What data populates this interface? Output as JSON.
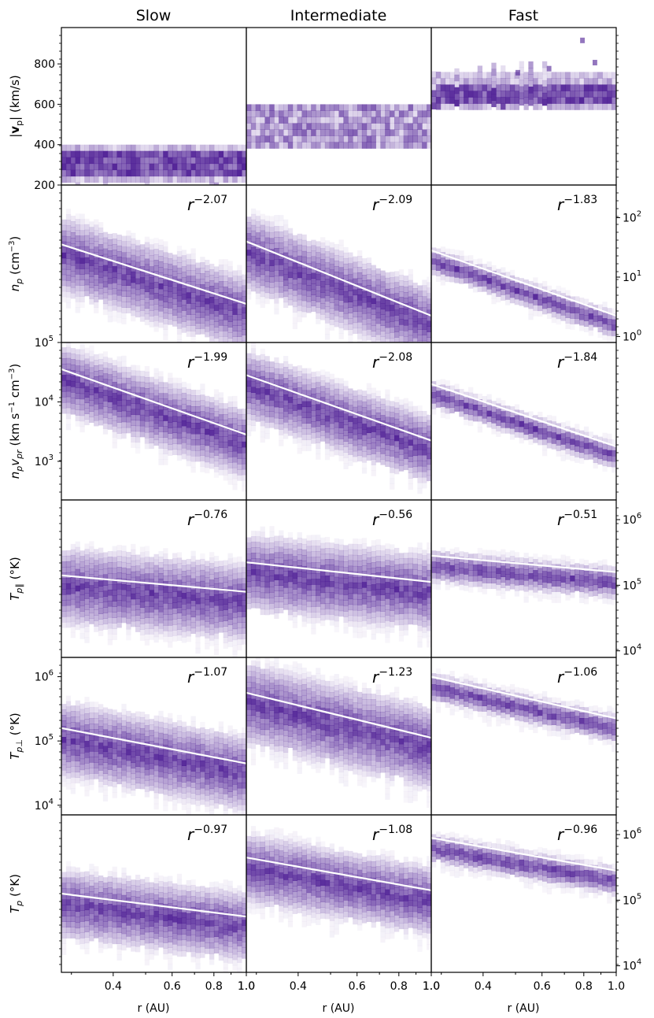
{
  "figure": {
    "columns": [
      "Slow",
      "Intermediate",
      "Fast"
    ],
    "x_axis_label": "r (AU)",
    "x_ticks": [
      "0.4",
      "0.6",
      "0.8",
      "1.0"
    ],
    "col_left_edge_labels": [
      "",
      "1.0",
      "1.0"
    ],
    "colors": {
      "histogram": "#4b1a93",
      "fit_line": "#ffffff",
      "axes": "#000000"
    }
  },
  "chart_data": [
    {
      "type": "heatmap",
      "row": 0,
      "title": "Slow",
      "ylabel": "|v_p| (km/s)",
      "ylabel_parts": [
        "|",
        "v",
        "p",
        "| (km/s)"
      ],
      "yscale": "linear",
      "ylim": [
        200,
        980
      ],
      "yticks": [
        200,
        400,
        600,
        800
      ],
      "ytick_labels": [
        "200",
        "400",
        "600",
        "800"
      ],
      "xlim": [
        0.28,
        1.0
      ],
      "band": [
        220,
        400
      ],
      "core": [
        260,
        370
      ],
      "fit": null
    },
    {
      "type": "heatmap",
      "row": 0,
      "title": "Intermediate",
      "yscale": "linear",
      "ylim": [
        200,
        980
      ],
      "band": [
        400,
        600
      ],
      "core": [
        410,
        520
      ],
      "fit": null
    },
    {
      "type": "heatmap",
      "row": 0,
      "title": "Fast",
      "yscale": "linear",
      "ylim": [
        200,
        980
      ],
      "band": [
        600,
        760
      ],
      "core": [
        605,
        700
      ],
      "fit": null
    },
    {
      "type": "heatmap",
      "row": 1,
      "title": "Slow",
      "ylabel": "n_p (cm^-3)",
      "ylabel_parts": [
        "n",
        "p",
        " (cm",
        "−3",
        ")"
      ],
      "yscale": "log",
      "ylim_log": [
        -0.1,
        2.55
      ],
      "band": [
        1.0,
        1.85
      ],
      "spread": 0.55,
      "scatter": 0.22,
      "fit": {
        "law": "r",
        "exponent": "−2.07",
        "y_start": 1.55,
        "y_end": 0.55
      }
    },
    {
      "type": "heatmap",
      "row": 1,
      "title": "Intermediate",
      "yscale": "log",
      "ylim_log": [
        -0.1,
        2.55
      ],
      "spread": 0.55,
      "scatter": 0.25,
      "fit": {
        "law": "r",
        "exponent": "−2.09",
        "y_start": 1.6,
        "y_end": 0.35
      }
    },
    {
      "type": "heatmap",
      "row": 1,
      "title": "Fast",
      "yscale": "log",
      "ylim_log": [
        -0.1,
        2.55
      ],
      "spread": 0.18,
      "scatter": 0.12,
      "right_yticks": [
        0,
        1,
        2
      ],
      "right_ytick_labels": [
        "10",
        "10",
        "10"
      ],
      "right_ytick_exps": [
        "0",
        "1",
        "2"
      ],
      "fit": {
        "law": "r",
        "exponent": "−1.83",
        "y_start": 1.45,
        "y_end": 0.35
      }
    },
    {
      "type": "heatmap",
      "row": 2,
      "title": "Slow",
      "ylabel": "n_p v_pr (km s^-1 cm^-3)",
      "ylabel_parts": [
        "n",
        "p",
        "v",
        "pr",
        " (km s",
        "−1",
        " cm",
        "−3",
        ")"
      ],
      "yscale": "log",
      "ylim_log": [
        2.35,
        5.0
      ],
      "yticks": [
        3,
        4,
        5
      ],
      "ytick_labels": [
        "10",
        "10",
        "10"
      ],
      "ytick_exps": [
        "3",
        "4",
        "5"
      ],
      "spread": 0.5,
      "scatter": 0.22,
      "fit": {
        "law": "r",
        "exponent": "−1.99",
        "y_start": 4.55,
        "y_end": 3.45
      }
    },
    {
      "type": "heatmap",
      "row": 2,
      "title": "Intermediate",
      "yscale": "log",
      "ylim_log": [
        2.35,
        5.0
      ],
      "spread": 0.5,
      "scatter": 0.22,
      "fit": {
        "law": "r",
        "exponent": "−2.08",
        "y_start": 4.45,
        "y_end": 3.35
      }
    },
    {
      "type": "heatmap",
      "row": 2,
      "title": "Fast",
      "yscale": "log",
      "ylim_log": [
        2.35,
        5.0
      ],
      "spread": 0.18,
      "scatter": 0.12,
      "fit": {
        "law": "r",
        "exponent": "−1.84",
        "y_start": 4.3,
        "y_end": 3.25
      }
    },
    {
      "type": "heatmap",
      "row": 3,
      "title": "Slow",
      "ylabel": "T_p|| (°K)",
      "ylabel_parts": [
        "T",
        "p∥",
        " (°K)"
      ],
      "yscale": "log",
      "ylim_log": [
        3.9,
        6.3
      ],
      "spread": 0.5,
      "scatter": 0.2,
      "fit": {
        "law": "r",
        "exponent": "−0.76",
        "y_start": 5.15,
        "y_end": 4.9
      }
    },
    {
      "type": "heatmap",
      "row": 3,
      "title": "Intermediate",
      "yscale": "log",
      "ylim_log": [
        3.9,
        6.3
      ],
      "spread": 0.5,
      "scatter": 0.22,
      "fit": {
        "law": "r",
        "exponent": "−0.56",
        "y_start": 5.35,
        "y_end": 5.05
      }
    },
    {
      "type": "heatmap",
      "row": 3,
      "title": "Fast",
      "yscale": "log",
      "ylim_log": [
        3.9,
        6.3
      ],
      "spread": 0.2,
      "scatter": 0.12,
      "right_yticks": [
        4,
        5,
        6
      ],
      "right_ytick_labels": [
        "10",
        "10",
        "10"
      ],
      "right_ytick_exps": [
        "4",
        "5",
        "6"
      ],
      "fit": {
        "law": "r",
        "exponent": "−0.51",
        "y_start": 5.45,
        "y_end": 5.2
      }
    },
    {
      "type": "heatmap",
      "row": 4,
      "title": "Slow",
      "ylabel": "T_p⊥ (°K)",
      "ylabel_parts": [
        "T",
        "p⊥",
        " (°K)"
      ],
      "yscale": "log",
      "ylim_log": [
        3.85,
        6.3
      ],
      "yticks": [
        4,
        5,
        6
      ],
      "ytick_labels": [
        "10",
        "10",
        "10"
      ],
      "ytick_exps": [
        "4",
        "5",
        "6"
      ],
      "spread": 0.5,
      "scatter": 0.22,
      "fit": {
        "law": "r",
        "exponent": "−1.07",
        "y_start": 5.2,
        "y_end": 4.65
      }
    },
    {
      "type": "heatmap",
      "row": 4,
      "title": "Intermediate",
      "yscale": "log",
      "ylim_log": [
        3.85,
        6.3
      ],
      "spread": 0.55,
      "scatter": 0.25,
      "fit": {
        "law": "r",
        "exponent": "−1.23",
        "y_start": 5.75,
        "y_end": 5.05
      }
    },
    {
      "type": "heatmap",
      "row": 4,
      "title": "Fast",
      "yscale": "log",
      "ylim_log": [
        3.85,
        6.3
      ],
      "spread": 0.18,
      "scatter": 0.12,
      "fit": {
        "law": "r",
        "exponent": "−1.06",
        "y_start": 6.0,
        "y_end": 5.35
      }
    },
    {
      "type": "heatmap",
      "row": 5,
      "title": "Slow",
      "ylabel": "T_p (°K)",
      "ylabel_parts": [
        "T",
        "p",
        " (°K)"
      ],
      "yscale": "log",
      "ylim_log": [
        3.9,
        6.3
      ],
      "spread": 0.45,
      "scatter": 0.2,
      "fit": {
        "law": "r",
        "exponent": "−0.97",
        "y_start": 5.1,
        "y_end": 4.75
      }
    },
    {
      "type": "heatmap",
      "row": 5,
      "title": "Intermediate",
      "yscale": "log",
      "ylim_log": [
        3.9,
        6.3
      ],
      "spread": 0.45,
      "scatter": 0.22,
      "fit": {
        "law": "r",
        "exponent": "−1.08",
        "y_start": 5.65,
        "y_end": 5.15
      }
    },
    {
      "type": "heatmap",
      "row": 5,
      "title": "Fast",
      "yscale": "log",
      "ylim_log": [
        3.9,
        6.3
      ],
      "spread": 0.18,
      "scatter": 0.12,
      "right_yticks": [
        4,
        5,
        6
      ],
      "right_ytick_labels": [
        "10",
        "10",
        "10"
      ],
      "right_ytick_exps": [
        "4",
        "5",
        "6"
      ],
      "fit": {
        "law": "r",
        "exponent": "−0.96",
        "y_start": 5.95,
        "y_end": 5.45
      }
    }
  ]
}
